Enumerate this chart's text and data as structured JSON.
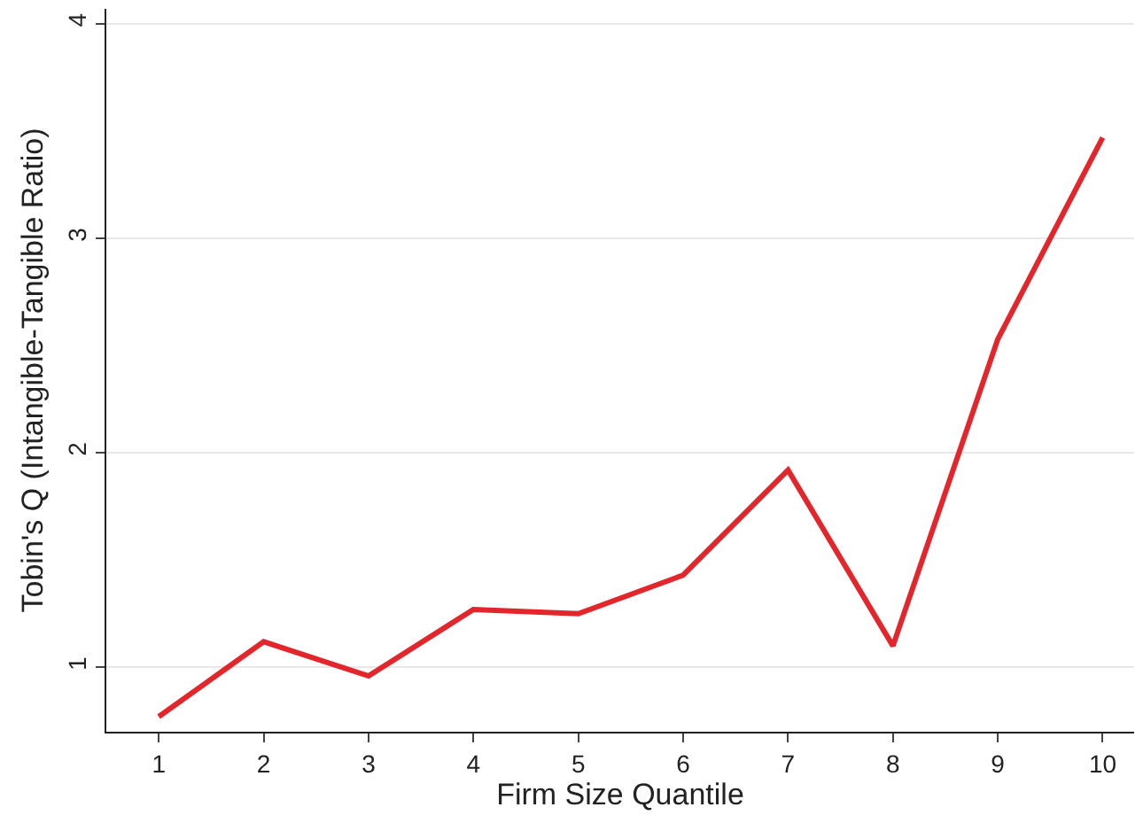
{
  "chart_data": {
    "type": "line",
    "xlabel": "Firm Size Quantile",
    "ylabel": "Tobin's Q (Intangible-Tangible Ratio)",
    "x": [
      1,
      2,
      3,
      4,
      5,
      6,
      7,
      8,
      9,
      10
    ],
    "series": [
      {
        "color": "#e3262b",
        "values": [
          0.77,
          1.12,
          0.96,
          1.27,
          1.25,
          1.43,
          1.92,
          1.1,
          2.53,
          3.47
        ]
      }
    ],
    "xlim": [
      0.5,
      10.3
    ],
    "xticks": [
      1,
      2,
      3,
      4,
      5,
      6,
      7,
      8,
      9,
      10
    ],
    "ylim": [
      0.7,
      4.07
    ],
    "yticks": [
      1,
      2,
      3,
      4
    ],
    "grid": "y",
    "legend": false,
    "marker": "none",
    "line_style": "solid"
  }
}
